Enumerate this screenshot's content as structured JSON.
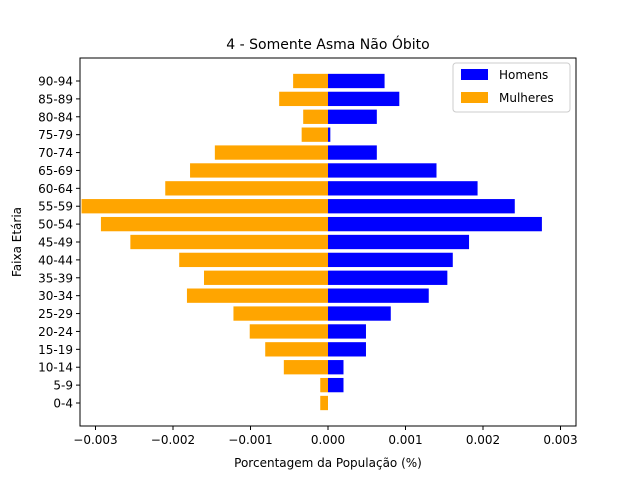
{
  "chart_data": {
    "type": "bar",
    "orientation": "horizontal",
    "title": "4 - Somente Asma Não Óbito",
    "xlabel": "Porcentagem da População (%)",
    "ylabel": "Faixa Etária",
    "xlim": [
      -0.0032,
      0.0032
    ],
    "xticks": [
      -0.003,
      -0.002,
      -0.001,
      0.0,
      0.001,
      0.002,
      0.003
    ],
    "xtick_labels": [
      "−0.003",
      "−0.002",
      "−0.001",
      "0.000",
      "0.001",
      "0.002",
      "0.003"
    ],
    "categories": [
      "0-4",
      "5-9",
      "10-14",
      "15-19",
      "20-24",
      "25-29",
      "30-34",
      "35-39",
      "40-44",
      "45-49",
      "50-54",
      "55-59",
      "60-64",
      "65-69",
      "70-74",
      "75-79",
      "80-84",
      "85-89",
      "90-94"
    ],
    "series": [
      {
        "name": "Homens",
        "color": "#0000ff",
        "values": [
          0.0,
          0.0002,
          0.0002,
          0.00049,
          0.00049,
          0.00081,
          0.0013,
          0.00154,
          0.00161,
          0.00182,
          0.00276,
          0.00241,
          0.00193,
          0.0014,
          0.00063,
          3e-05,
          0.00063,
          0.00092,
          0.00073
        ]
      },
      {
        "name": "Mulheres",
        "color": "#ffa500",
        "values": [
          -0.0001,
          -0.0001,
          -0.00057,
          -0.00081,
          -0.00101,
          -0.00122,
          -0.00182,
          -0.0016,
          -0.00192,
          -0.00255,
          -0.00293,
          -0.00318,
          -0.0021,
          -0.00178,
          -0.00146,
          -0.00034,
          -0.00032,
          -0.00063,
          -0.00045
        ]
      }
    ],
    "legend_position": "top-right",
    "grid": false
  }
}
